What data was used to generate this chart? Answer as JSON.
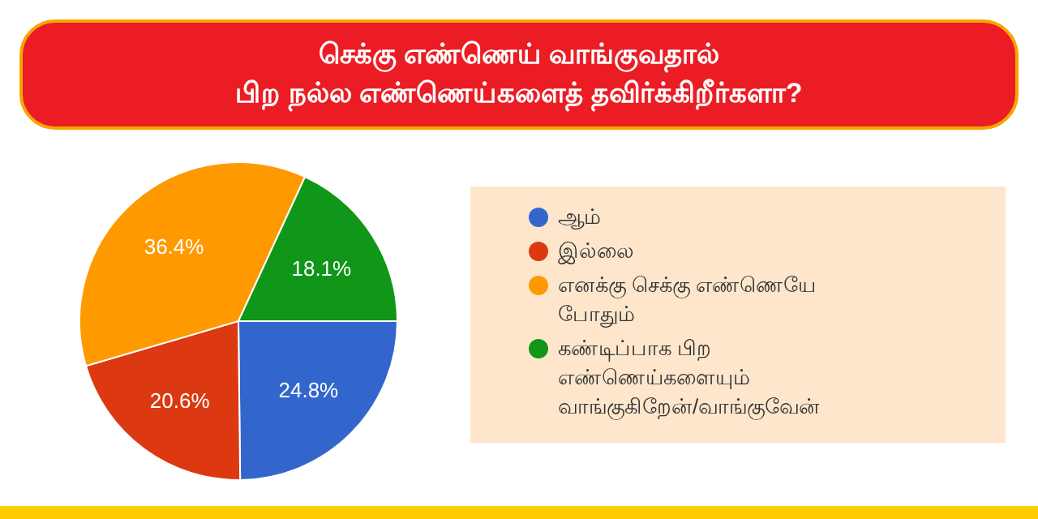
{
  "chart_data": {
    "type": "pie",
    "title": "செக்கு எண்ணெய் வாங்குவதால்\nபிற நல்ல எண்ணெய்களைத் தவிர்க்கிறீர்களா?",
    "categories": [
      "ஆம்",
      "இல்லை",
      "எனக்கு செக்கு எண்ணெயே போதும்",
      "கண்டிப்பாக பிற எண்ணெய்களையும் வாங்குகிறேன்/வாங்குவேன்"
    ],
    "values": [
      24.8,
      20.6,
      36.4,
      18.1
    ],
    "colors": [
      "#3366cc",
      "#dc3912",
      "#ff9900",
      "#109618"
    ],
    "value_labels": [
      "24.8%",
      "20.6%",
      "36.4%",
      "18.1%"
    ],
    "legend": "right"
  }
}
